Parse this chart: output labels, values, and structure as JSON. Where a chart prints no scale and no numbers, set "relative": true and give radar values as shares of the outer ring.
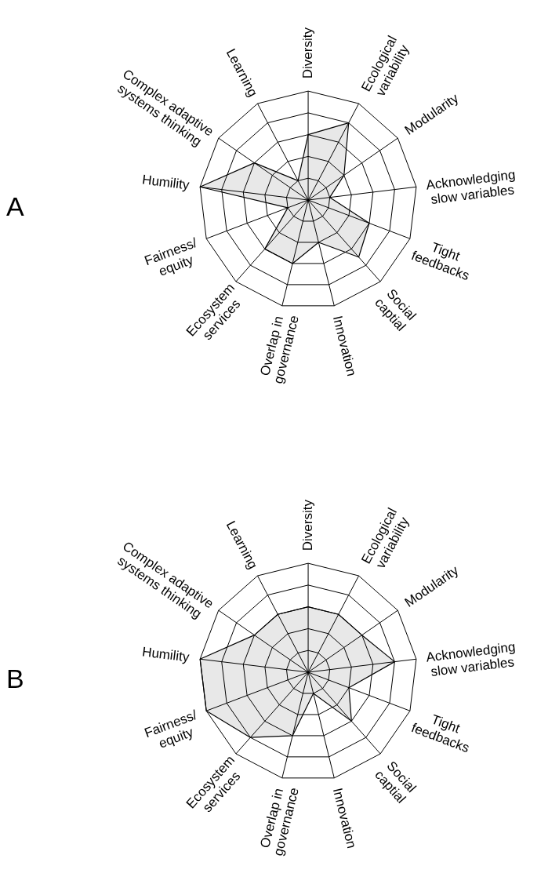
{
  "chart_data": [
    {
      "type": "radar",
      "title": "A",
      "relative": true,
      "grid": true,
      "categories": [
        "Diversity",
        "Ecological\nvariability",
        "Modularity",
        "Acknowledging\nslow variables",
        "Tight\nfeedbacks",
        "Social\ncaptial",
        "Innovation",
        "Overlap in\ngovernance",
        "Ecosystem\nservices",
        "Fairness/\nequity",
        "Humility",
        "Complex adaptive\nsystems thinking",
        "Learning"
      ],
      "series": [
        {
          "color": "#e6e6e6",
          "values": [
            0.6,
            0.8,
            0.4,
            0.2,
            0.6,
            0.7,
            0.4,
            0.6,
            0.6,
            0.2,
            1.0,
            0.6,
            0.2
          ]
        }
      ]
    },
    {
      "type": "radar",
      "title": "B",
      "relative": true,
      "grid": true,
      "categories": [
        "Diversity",
        "Ecological\nvariability",
        "Modularity",
        "Acknowledging\nslow variables",
        "Tight\nfeedbacks",
        "Social\ncaptial",
        "Innovation",
        "Overlap in\ngovernance",
        "Ecosystem\nservices",
        "Fairness/\nequity",
        "Humility",
        "Complex adaptive\nsystems thinking",
        "Learning"
      ],
      "series": [
        {
          "color": "#e6e6e6",
          "values": [
            0.6,
            0.6,
            0.6,
            0.8,
            0.4,
            0.6,
            0.2,
            0.6,
            0.8,
            1.0,
            1.0,
            0.6,
            0.6
          ]
        }
      ]
    }
  ]
}
